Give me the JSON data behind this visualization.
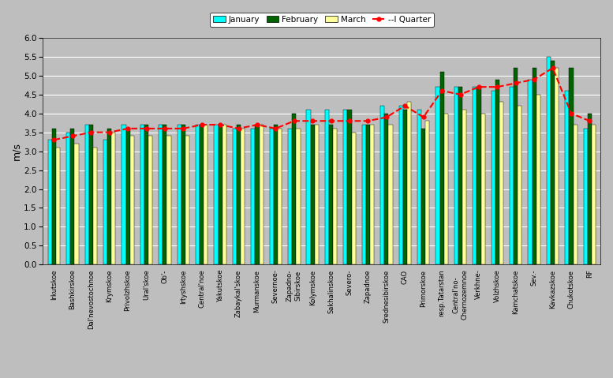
{
  "categories": [
    "Irkutskoe",
    "Bashkirskoe",
    "Dal'nevostochnoe",
    "Krymskoe",
    "Privolzhskoe",
    "Ural'skoe",
    "Ob'-",
    "Irtyshskoe",
    "Central'noe",
    "Yakutskoe",
    "Zabaykal'skoe",
    "Murmanskoe",
    "Severnoe-",
    "Zapadno-\nSibirskoe",
    "Kolymskoe",
    "Sakhalinskoe",
    "Severo-",
    "Zapadnoe",
    "Srednesibirskoe",
    "CAO",
    "Primorskoe",
    "resp.Tatarstan",
    "Central'no-\nChernozemnoe",
    "Verkhne-",
    "Volzhskoe",
    "Kamchatskoe",
    "Sev.-",
    "Kavkazskoe",
    "Chukotskoe",
    "RF"
  ],
  "january": [
    3.3,
    3.5,
    3.7,
    3.3,
    3.7,
    3.7,
    3.7,
    3.7,
    3.7,
    3.7,
    3.6,
    3.6,
    3.6,
    3.6,
    4.1,
    4.1,
    4.1,
    3.7,
    4.2,
    4.2,
    4.1,
    4.7,
    4.7,
    4.7,
    4.6,
    4.7,
    4.9,
    5.5,
    4.6,
    3.6
  ],
  "february": [
    3.6,
    3.6,
    3.7,
    3.6,
    3.6,
    3.7,
    3.7,
    3.7,
    3.7,
    3.7,
    3.7,
    3.7,
    3.7,
    4.0,
    3.7,
    3.7,
    4.1,
    3.7,
    4.0,
    4.1,
    3.6,
    5.1,
    4.7,
    4.7,
    4.9,
    5.2,
    5.2,
    5.4,
    5.2,
    4.0
  ],
  "march": [
    3.1,
    3.2,
    3.1,
    3.5,
    3.4,
    3.4,
    3.4,
    3.4,
    3.7,
    3.7,
    3.6,
    3.7,
    3.6,
    3.6,
    3.7,
    3.6,
    3.5,
    3.7,
    3.7,
    4.3,
    3.8,
    4.0,
    4.1,
    4.0,
    4.3,
    4.2,
    4.5,
    5.2,
    3.7,
    3.7
  ],
  "quarter": [
    3.3,
    3.4,
    3.5,
    3.5,
    3.6,
    3.6,
    3.6,
    3.6,
    3.7,
    3.7,
    3.6,
    3.7,
    3.6,
    3.8,
    3.8,
    3.8,
    3.8,
    3.8,
    3.9,
    4.2,
    3.9,
    4.6,
    4.5,
    4.7,
    4.7,
    4.8,
    4.9,
    5.2,
    4.0,
    3.8
  ],
  "jan_color": "#00FFFF",
  "feb_color": "#006400",
  "mar_color": "#FFFF99",
  "quarter_color": "#FF0000",
  "plot_bg_color": "#BEBEBE",
  "fig_bg_color": "#BEBEBE",
  "ylabel": "m/s",
  "ylim": [
    0,
    6
  ],
  "yticks": [
    0,
    0.5,
    1.0,
    1.5,
    2.0,
    2.5,
    3.0,
    3.5,
    4.0,
    4.5,
    5.0,
    5.5,
    6.0
  ]
}
